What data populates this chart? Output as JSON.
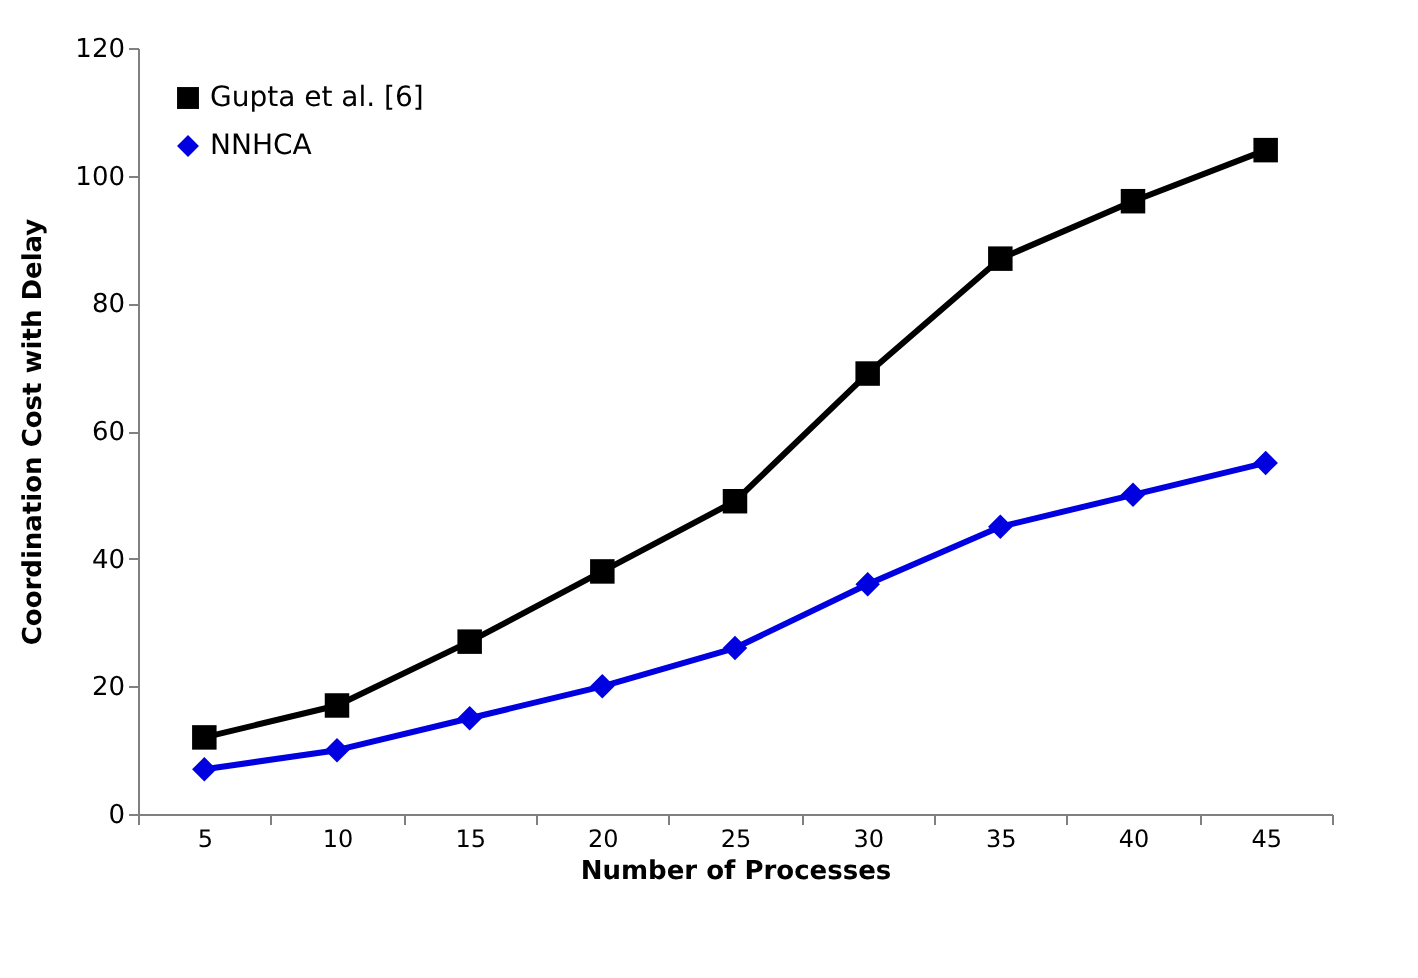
{
  "chart_data": {
    "type": "line",
    "xlabel": "Number  of Processes",
    "ylabel": "Coordination Cost  with Delay",
    "categories": [
      "5",
      "10",
      "15",
      "20",
      "25",
      "30",
      "35",
      "40",
      "45"
    ],
    "series": [
      {
        "name": "Gupta et al. [6]",
        "color": "#000000",
        "marker": "square",
        "values": [
          12,
          17,
          27,
          38,
          49,
          69,
          87,
          96,
          104
        ]
      },
      {
        "name": "NNHCA",
        "color": "#0000e0",
        "marker": "diamond",
        "values": [
          7,
          10,
          15,
          20,
          26,
          36,
          45,
          50,
          55
        ]
      }
    ],
    "ylim": [
      0,
      120
    ],
    "yticks": [
      0,
      20,
      40,
      60,
      80,
      100,
      120
    ],
    "grid": false,
    "legend": "top left",
    "line_style": "solid"
  }
}
